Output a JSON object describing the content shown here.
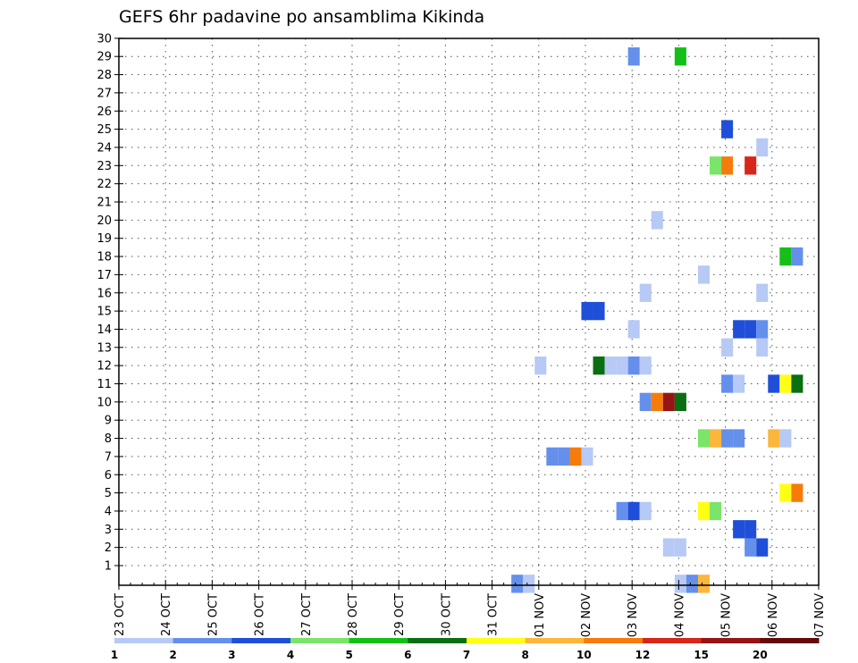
{
  "chart_data": {
    "type": "heatmap",
    "title": "GEFS 6hr padavine po ansamblima Kikinda",
    "xlabel": "",
    "ylabel": "",
    "x_ticks": [
      "23 OCT",
      "24 OCT",
      "25 OCT",
      "26 OCT",
      "27 OCT",
      "28 OCT",
      "29 OCT",
      "30 OCT",
      "31 OCT",
      "01 NOV",
      "02 NOV",
      "03 NOV",
      "04 NOV",
      "05 NOV",
      "06 NOV",
      "07 NOV"
    ],
    "y_ticks": [
      "1",
      "2",
      "3",
      "4",
      "5",
      "6",
      "7",
      "8",
      "9",
      "10",
      "11",
      "12",
      "13",
      "14",
      "15",
      "16",
      "17",
      "18",
      "19",
      "20",
      "21",
      "22",
      "23",
      "24",
      "25",
      "26",
      "27",
      "28",
      "29",
      "30"
    ],
    "xlim_days": [
      0,
      15
    ],
    "ylim": [
      0,
      30
    ],
    "grid": true,
    "colorbar": {
      "labels": [
        "1",
        "2",
        "3",
        "4",
        "5",
        "6",
        "7",
        "8",
        "10",
        "12",
        "15",
        "20"
      ],
      "colors": [
        "#b7c9f5",
        "#6490ec",
        "#1f4fd8",
        "#7be46a",
        "#14c018",
        "#0a6e12",
        "#ffff14",
        "#fbb63c",
        "#f57c0a",
        "#d8261a",
        "#961414",
        "#640a0a"
      ]
    },
    "cells": [
      {
        "t": 8.5,
        "member": 0,
        "level": 2
      },
      {
        "t": 8.75,
        "member": 0,
        "level": 1
      },
      {
        "t": 12.0,
        "member": 0,
        "level": 1
      },
      {
        "t": 12.25,
        "member": 0,
        "level": 2
      },
      {
        "t": 12.5,
        "member": 0,
        "level": 8
      },
      {
        "t": 11.75,
        "member": 2,
        "level": 1
      },
      {
        "t": 12.0,
        "member": 2,
        "level": 1
      },
      {
        "t": 13.5,
        "member": 2,
        "level": 2
      },
      {
        "t": 13.75,
        "member": 2,
        "level": 3
      },
      {
        "t": 13.25,
        "member": 3,
        "level": 3
      },
      {
        "t": 13.5,
        "member": 3,
        "level": 3
      },
      {
        "t": 10.75,
        "member": 4,
        "level": 2
      },
      {
        "t": 11.0,
        "member": 4,
        "level": 3
      },
      {
        "t": 11.25,
        "member": 4,
        "level": 1
      },
      {
        "t": 12.5,
        "member": 4,
        "level": 7
      },
      {
        "t": 12.75,
        "member": 4,
        "level": 4
      },
      {
        "t": 14.25,
        "member": 5,
        "level": 7
      },
      {
        "t": 14.5,
        "member": 5,
        "level": 9
      },
      {
        "t": 9.25,
        "member": 7,
        "level": 2
      },
      {
        "t": 9.5,
        "member": 7,
        "level": 2
      },
      {
        "t": 9.75,
        "member": 7,
        "level": 9
      },
      {
        "t": 10.0,
        "member": 7,
        "level": 1
      },
      {
        "t": 12.5,
        "member": 8,
        "level": 4
      },
      {
        "t": 12.75,
        "member": 8,
        "level": 8
      },
      {
        "t": 13.0,
        "member": 8,
        "level": 2
      },
      {
        "t": 13.25,
        "member": 8,
        "level": 2
      },
      {
        "t": 14.0,
        "member": 8,
        "level": 8
      },
      {
        "t": 14.25,
        "member": 8,
        "level": 1
      },
      {
        "t": 11.25,
        "member": 10,
        "level": 2
      },
      {
        "t": 11.5,
        "member": 10,
        "level": 9
      },
      {
        "t": 11.75,
        "member": 10,
        "level": 11
      },
      {
        "t": 12.0,
        "member": 10,
        "level": 6
      },
      {
        "t": 13.0,
        "member": 11,
        "level": 2
      },
      {
        "t": 13.25,
        "member": 11,
        "level": 1
      },
      {
        "t": 14.0,
        "member": 11,
        "level": 3
      },
      {
        "t": 14.25,
        "member": 11,
        "level": 7
      },
      {
        "t": 14.5,
        "member": 11,
        "level": 6
      },
      {
        "t": 9.0,
        "member": 12,
        "level": 1
      },
      {
        "t": 10.25,
        "member": 12,
        "level": 6
      },
      {
        "t": 10.5,
        "member": 12,
        "level": 1
      },
      {
        "t": 10.75,
        "member": 12,
        "level": 1
      },
      {
        "t": 11.0,
        "member": 12,
        "level": 2
      },
      {
        "t": 11.25,
        "member": 12,
        "level": 1
      },
      {
        "t": 13.0,
        "member": 13,
        "level": 1
      },
      {
        "t": 13.75,
        "member": 13,
        "level": 1
      },
      {
        "t": 11.0,
        "member": 14,
        "level": 1
      },
      {
        "t": 13.25,
        "member": 14,
        "level": 3
      },
      {
        "t": 13.5,
        "member": 14,
        "level": 3
      },
      {
        "t": 13.75,
        "member": 14,
        "level": 2
      },
      {
        "t": 10.0,
        "member": 15,
        "level": 3
      },
      {
        "t": 10.25,
        "member": 15,
        "level": 3
      },
      {
        "t": 11.25,
        "member": 16,
        "level": 1
      },
      {
        "t": 13.75,
        "member": 16,
        "level": 1
      },
      {
        "t": 12.5,
        "member": 17,
        "level": 1
      },
      {
        "t": 14.25,
        "member": 18,
        "level": 5
      },
      {
        "t": 14.5,
        "member": 18,
        "level": 2
      },
      {
        "t": 11.5,
        "member": 20,
        "level": 1
      },
      {
        "t": 12.75,
        "member": 23,
        "level": 4
      },
      {
        "t": 13.0,
        "member": 23,
        "level": 9
      },
      {
        "t": 13.5,
        "member": 23,
        "level": 10
      },
      {
        "t": 13.75,
        "member": 24,
        "level": 1
      },
      {
        "t": 13.0,
        "member": 25,
        "level": 3
      },
      {
        "t": 11.0,
        "member": 29,
        "level": 2
      },
      {
        "t": 12.0,
        "member": 29,
        "level": 5
      }
    ]
  }
}
